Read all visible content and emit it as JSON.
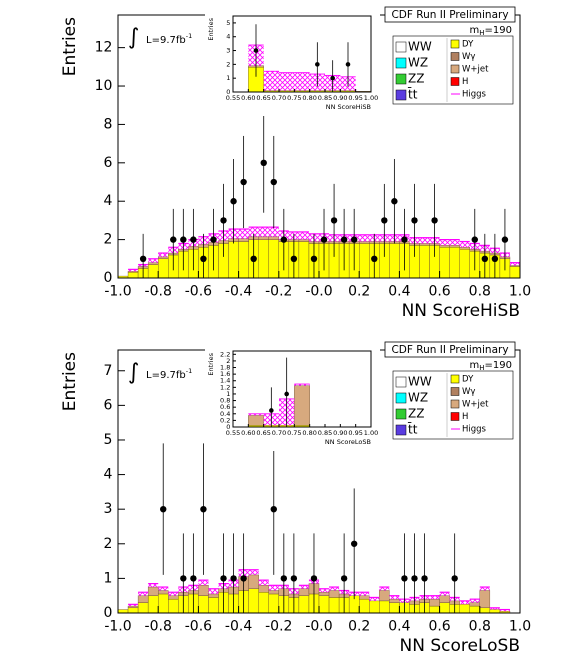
{
  "chart_data": [
    {
      "type": "histogram",
      "title": "CDF Run II Preliminary",
      "mass_label": [
        "m",
        "H",
        "=190"
      ],
      "lumi_label": [
        "∫",
        "L=9.7fb",
        "-1"
      ],
      "xlabel": "NN ScoreHiSB",
      "ylabel": "Entries",
      "xlim": [
        -1,
        1
      ],
      "ylim": [
        0,
        13.7
      ],
      "xticks": [
        {
          "value": -1,
          "label": "-1.0"
        },
        -0.8,
        -0.6,
        -0.4,
        -0.2,
        {
          "value": 0,
          "label": "-0.0"
        },
        0.2,
        0.4,
        0.6,
        0.8,
        {
          "value": 1,
          "label": "1.0"
        }
      ],
      "yticks": [
        0,
        2,
        4,
        6,
        8,
        10,
        12
      ],
      "bins": [
        -1,
        -0.95,
        -0.9,
        -0.85,
        -0.8,
        -0.75,
        -0.7,
        -0.65,
        -0.6,
        -0.55,
        -0.5,
        -0.45,
        -0.4,
        -0.35,
        -0.3,
        -0.25,
        -0.2,
        -0.15,
        -0.1,
        -0.05,
        0,
        0.05,
        0.1,
        0.15,
        0.2,
        0.25,
        0.3,
        0.35,
        0.4,
        0.45,
        0.5,
        0.55,
        0.6,
        0.65,
        0.7,
        0.75,
        0.8,
        0.85,
        0.9,
        0.95,
        1
      ],
      "series": [
        {
          "name": "DY",
          "color": "#ffff00",
          "values": [
            0.1,
            0.3,
            0.5,
            0.7,
            1.0,
            1.2,
            1.4,
            1.5,
            1.6,
            1.7,
            1.8,
            1.9,
            1.9,
            2.0,
            2.0,
            2.0,
            1.9,
            1.9,
            1.9,
            1.8,
            1.8,
            1.8,
            1.8,
            1.8,
            1.8,
            1.8,
            1.8,
            1.8,
            1.8,
            1.7,
            1.7,
            1.7,
            1.6,
            1.6,
            1.5,
            1.4,
            1.3,
            1.2,
            1.0,
            0.6
          ]
        },
        {
          "name": "W+jet",
          "color": "#d7a97e",
          "values": [
            0,
            0.05,
            0.1,
            0.1,
            0.1,
            0.1,
            0.1,
            0.15,
            0.15,
            0.15,
            0.15,
            0.15,
            0.15,
            0.15,
            0.15,
            0.15,
            0.1,
            0.1,
            0.1,
            0.1,
            0.1,
            0.1,
            0.1,
            0.1,
            0.1,
            0.1,
            0.1,
            0.1,
            0.1,
            0.1,
            0.1,
            0.1,
            0.1,
            0.1,
            0.1,
            0.1,
            0.1,
            0.1,
            0.1,
            0.05
          ]
        },
        {
          "name": "Higgs",
          "color": "#ff00ff",
          "style": "hatch",
          "values": [
            0,
            0.1,
            0.1,
            0.2,
            0.2,
            0.3,
            0.3,
            0.35,
            0.4,
            0.45,
            0.5,
            0.5,
            0.5,
            0.5,
            0.5,
            0.5,
            0.45,
            0.4,
            0.4,
            0.4,
            0.4,
            0.35,
            0.35,
            0.35,
            0.35,
            0.35,
            0.35,
            0.35,
            0.35,
            0.3,
            0.3,
            0.3,
            0.3,
            0.3,
            0.3,
            0.3,
            0.3,
            0.25,
            0.2,
            0.15
          ]
        }
      ],
      "legend_only": [
        {
          "name": "WW",
          "color": "#ffffff"
        },
        {
          "name": "WZ",
          "color": "#00ffff"
        },
        {
          "name": "ZZ",
          "color": "#33cc33"
        },
        {
          "name": "t̄t",
          "color": "#5a3ce0"
        },
        {
          "name": "Wγ",
          "color": "#b08060"
        },
        {
          "name": "H",
          "color": "#ff0000"
        }
      ],
      "data": {
        "x": [
          -0.875,
          -0.725,
          -0.675,
          -0.625,
          -0.575,
          -0.525,
          -0.475,
          -0.425,
          -0.375,
          -0.325,
          -0.275,
          -0.225,
          -0.175,
          -0.125,
          -0.025,
          0.025,
          0.075,
          0.125,
          0.175,
          0.275,
          0.325,
          0.375,
          0.425,
          0.475,
          0.575,
          0.775,
          0.825,
          0.875,
          0.925
        ],
        "values": [
          1,
          2,
          2,
          2,
          1,
          2,
          3,
          4,
          5,
          1,
          6,
          5,
          2,
          1,
          1,
          2,
          3,
          2,
          2,
          1,
          3,
          4,
          2,
          3,
          3,
          2,
          1,
          1,
          2
        ],
        "errors": [
          1.3,
          1.6,
          1.6,
          1.6,
          1.3,
          1.6,
          1.9,
          2.2,
          2.4,
          1.3,
          2.6,
          2.4,
          1.6,
          1.3,
          1.3,
          1.6,
          1.9,
          1.6,
          1.6,
          1.3,
          1.9,
          2.2,
          1.6,
          1.9,
          1.9,
          1.6,
          1.3,
          1.3,
          1.6
        ]
      },
      "inset": {
        "xlabel": "NN ScoreHiSB",
        "ylabel": "Entries",
        "xlim": [
          0.55,
          1
        ],
        "ylim": [
          0,
          5.5
        ],
        "xticks": [
          0.55,
          {
            "value": 0.6,
            "label": "0.60"
          },
          0.65,
          {
            "value": 0.7,
            "label": "0.70"
          },
          0.75,
          {
            "value": 0.8,
            "label": "0.80"
          },
          0.85,
          {
            "value": 0.9,
            "label": "0.90"
          },
          0.95,
          {
            "value": 1,
            "label": "1.00"
          }
        ],
        "yticks": [
          0,
          1,
          2,
          3,
          4,
          5
        ],
        "bins": [
          0.55,
          0.6,
          0.65,
          0.7,
          0.75,
          0.8,
          0.85,
          0.9,
          0.95,
          1
        ],
        "series": [
          {
            "name": "DY",
            "color": "#ffff00",
            "values": [
              0,
              1.8,
              0.1,
              0.1,
              0.1,
              0.1,
              0.1,
              0.1,
              0.05
            ]
          },
          {
            "name": "W+jet",
            "color": "#d7a97e",
            "values": [
              0,
              0.1,
              0,
              0,
              0,
              0,
              0,
              0,
              0
            ]
          },
          {
            "name": "Higgs",
            "color": "#ff00ff",
            "style": "hatch",
            "values": [
              0,
              1.5,
              1.4,
              1.3,
              1.3,
              1.2,
              1.1,
              1.0,
              0
            ]
          }
        ],
        "data": {
          "x": [
            0.625,
            0.825,
            0.875,
            0.925
          ],
          "values": [
            3,
            2,
            1,
            2
          ],
          "errors": [
            1.9,
            1.6,
            1.3,
            1.6
          ]
        }
      }
    },
    {
      "type": "histogram",
      "title": "CDF Run II Preliminary",
      "mass_label": [
        "m",
        "H",
        "=190"
      ],
      "lumi_label": [
        "∫",
        "L=9.7fb",
        "-1"
      ],
      "xlabel": "NN ScoreLoSB",
      "ylabel": "Entries",
      "xlim": [
        -1,
        1
      ],
      "ylim": [
        0,
        7.6
      ],
      "xticks": [
        {
          "value": -1,
          "label": "-1.0"
        },
        -0.8,
        -0.6,
        -0.4,
        -0.2,
        {
          "value": 0,
          "label": "-0.0"
        },
        0.2,
        0.4,
        0.6,
        0.8,
        {
          "value": 1,
          "label": "1.0"
        }
      ],
      "yticks": [
        0,
        1,
        2,
        3,
        4,
        5,
        6,
        7
      ],
      "bins": [
        -1,
        -0.95,
        -0.9,
        -0.85,
        -0.8,
        -0.75,
        -0.7,
        -0.65,
        -0.6,
        -0.55,
        -0.5,
        -0.45,
        -0.4,
        -0.35,
        -0.3,
        -0.25,
        -0.2,
        -0.15,
        -0.1,
        -0.05,
        0,
        0.05,
        0.1,
        0.15,
        0.2,
        0.25,
        0.3,
        0.35,
        0.4,
        0.45,
        0.5,
        0.55,
        0.6,
        0.65,
        0.7,
        0.75,
        0.8,
        0.85,
        0.9,
        0.95,
        1
      ],
      "series": [
        {
          "name": "DY",
          "color": "#ffff00",
          "values": [
            0.1,
            0.15,
            0.3,
            0.5,
            0.55,
            0.4,
            0.5,
            0.55,
            0.5,
            0.45,
            0.6,
            0.55,
            0.65,
            0.7,
            0.6,
            0.55,
            0.5,
            0.45,
            0.5,
            0.55,
            0.5,
            0.45,
            0.45,
            0.5,
            0.4,
            0.35,
            0.35,
            0.3,
            0.3,
            0.25,
            0.3,
            0.2,
            0.3,
            0.25,
            0.25,
            0.2,
            0.15,
            0.1,
            0.05,
            0
          ]
        },
        {
          "name": "W+jet",
          "color": "#d7a97e",
          "values": [
            0,
            0.05,
            0.2,
            0.25,
            0.1,
            0.1,
            0.1,
            0.1,
            0.3,
            0.1,
            0.1,
            0.2,
            0.4,
            0.4,
            0.2,
            0.1,
            0.2,
            0.1,
            0.2,
            0.3,
            0.1,
            0.2,
            0.1,
            0,
            0.1,
            0,
            0.3,
            0.1,
            0,
            0.1,
            0.1,
            0.2,
            0.2,
            0.1,
            0,
            0.1,
            0.5,
            0,
            0,
            0
          ]
        },
        {
          "name": "Higgs",
          "color": "#ff00ff",
          "style": "hatch",
          "values": [
            0,
            0.05,
            0.1,
            0.1,
            0.1,
            0.1,
            0.15,
            0.15,
            0.15,
            0.15,
            0.15,
            0.2,
            0.2,
            0.15,
            0.15,
            0.15,
            0.1,
            0.15,
            0.1,
            0.1,
            0.1,
            0.1,
            0.1,
            0.1,
            0.1,
            0.1,
            0.1,
            0.1,
            0.1,
            0.1,
            0.1,
            0.1,
            0.1,
            0.1,
            0.1,
            0.1,
            0.1,
            0.05,
            0.05,
            0
          ]
        }
      ],
      "legend_only": [
        {
          "name": "WW",
          "color": "#ffffff"
        },
        {
          "name": "WZ",
          "color": "#00ffff"
        },
        {
          "name": "ZZ",
          "color": "#33cc33"
        },
        {
          "name": "t̄t",
          "color": "#5a3ce0"
        },
        {
          "name": "Wγ",
          "color": "#b08060"
        },
        {
          "name": "H",
          "color": "#ff0000"
        }
      ],
      "data": {
        "x": [
          -0.775,
          -0.675,
          -0.625,
          -0.575,
          -0.475,
          -0.425,
          -0.375,
          -0.225,
          -0.175,
          -0.125,
          -0.025,
          0.125,
          0.175,
          0.425,
          0.475,
          0.525,
          0.675
        ],
        "values": [
          3,
          1,
          1,
          3,
          1,
          1,
          1,
          3,
          1,
          1,
          1,
          1,
          2,
          1,
          1,
          1,
          1
        ],
        "errors": [
          1.9,
          1.3,
          1.3,
          1.9,
          1.3,
          1.3,
          1.3,
          1.9,
          1.3,
          1.3,
          1.3,
          1.3,
          1.6,
          1.3,
          1.3,
          1.3,
          1.3
        ]
      },
      "inset": {
        "xlabel": "NN ScoreLoSB",
        "ylabel": "Entries",
        "xlim": [
          0.55,
          1
        ],
        "ylim": [
          0,
          2.3
        ],
        "xticks": [
          0.55,
          {
            "value": 0.6,
            "label": "0.60"
          },
          0.65,
          {
            "value": 0.7,
            "label": "0.70"
          },
          0.75,
          {
            "value": 0.8,
            "label": "0.80"
          },
          0.85,
          {
            "value": 0.9,
            "label": "0.90"
          },
          0.95,
          {
            "value": 1,
            "label": "1.00"
          }
        ],
        "yticks": [
          0,
          0.2,
          0.4,
          0.6,
          0.8,
          1,
          1.2,
          1.4,
          1.6,
          1.8,
          2,
          2.2
        ],
        "bins": [
          0.55,
          0.6,
          0.65,
          0.7,
          0.75,
          0.8,
          0.85,
          0.9,
          0.95,
          1
        ],
        "series": [
          {
            "name": "DY",
            "color": "#ffff00",
            "values": [
              0,
              0.05,
              0.05,
              0.05,
              0.05,
              0,
              0,
              0,
              0
            ]
          },
          {
            "name": "W+jet",
            "color": "#d7a97e",
            "values": [
              0,
              0.3,
              0,
              0,
              1.2,
              0,
              0,
              0,
              0
            ]
          },
          {
            "name": "Higgs",
            "color": "#ff00ff",
            "style": "hatch",
            "values": [
              0,
              0.05,
              0.35,
              0.8,
              0.05,
              0,
              0,
              0,
              0
            ]
          }
        ],
        "data": {
          "x": [
            0.675,
            0.725
          ],
          "values": [
            0.5,
            1
          ],
          "errors": [
            0.7,
            1.1
          ]
        }
      }
    }
  ]
}
